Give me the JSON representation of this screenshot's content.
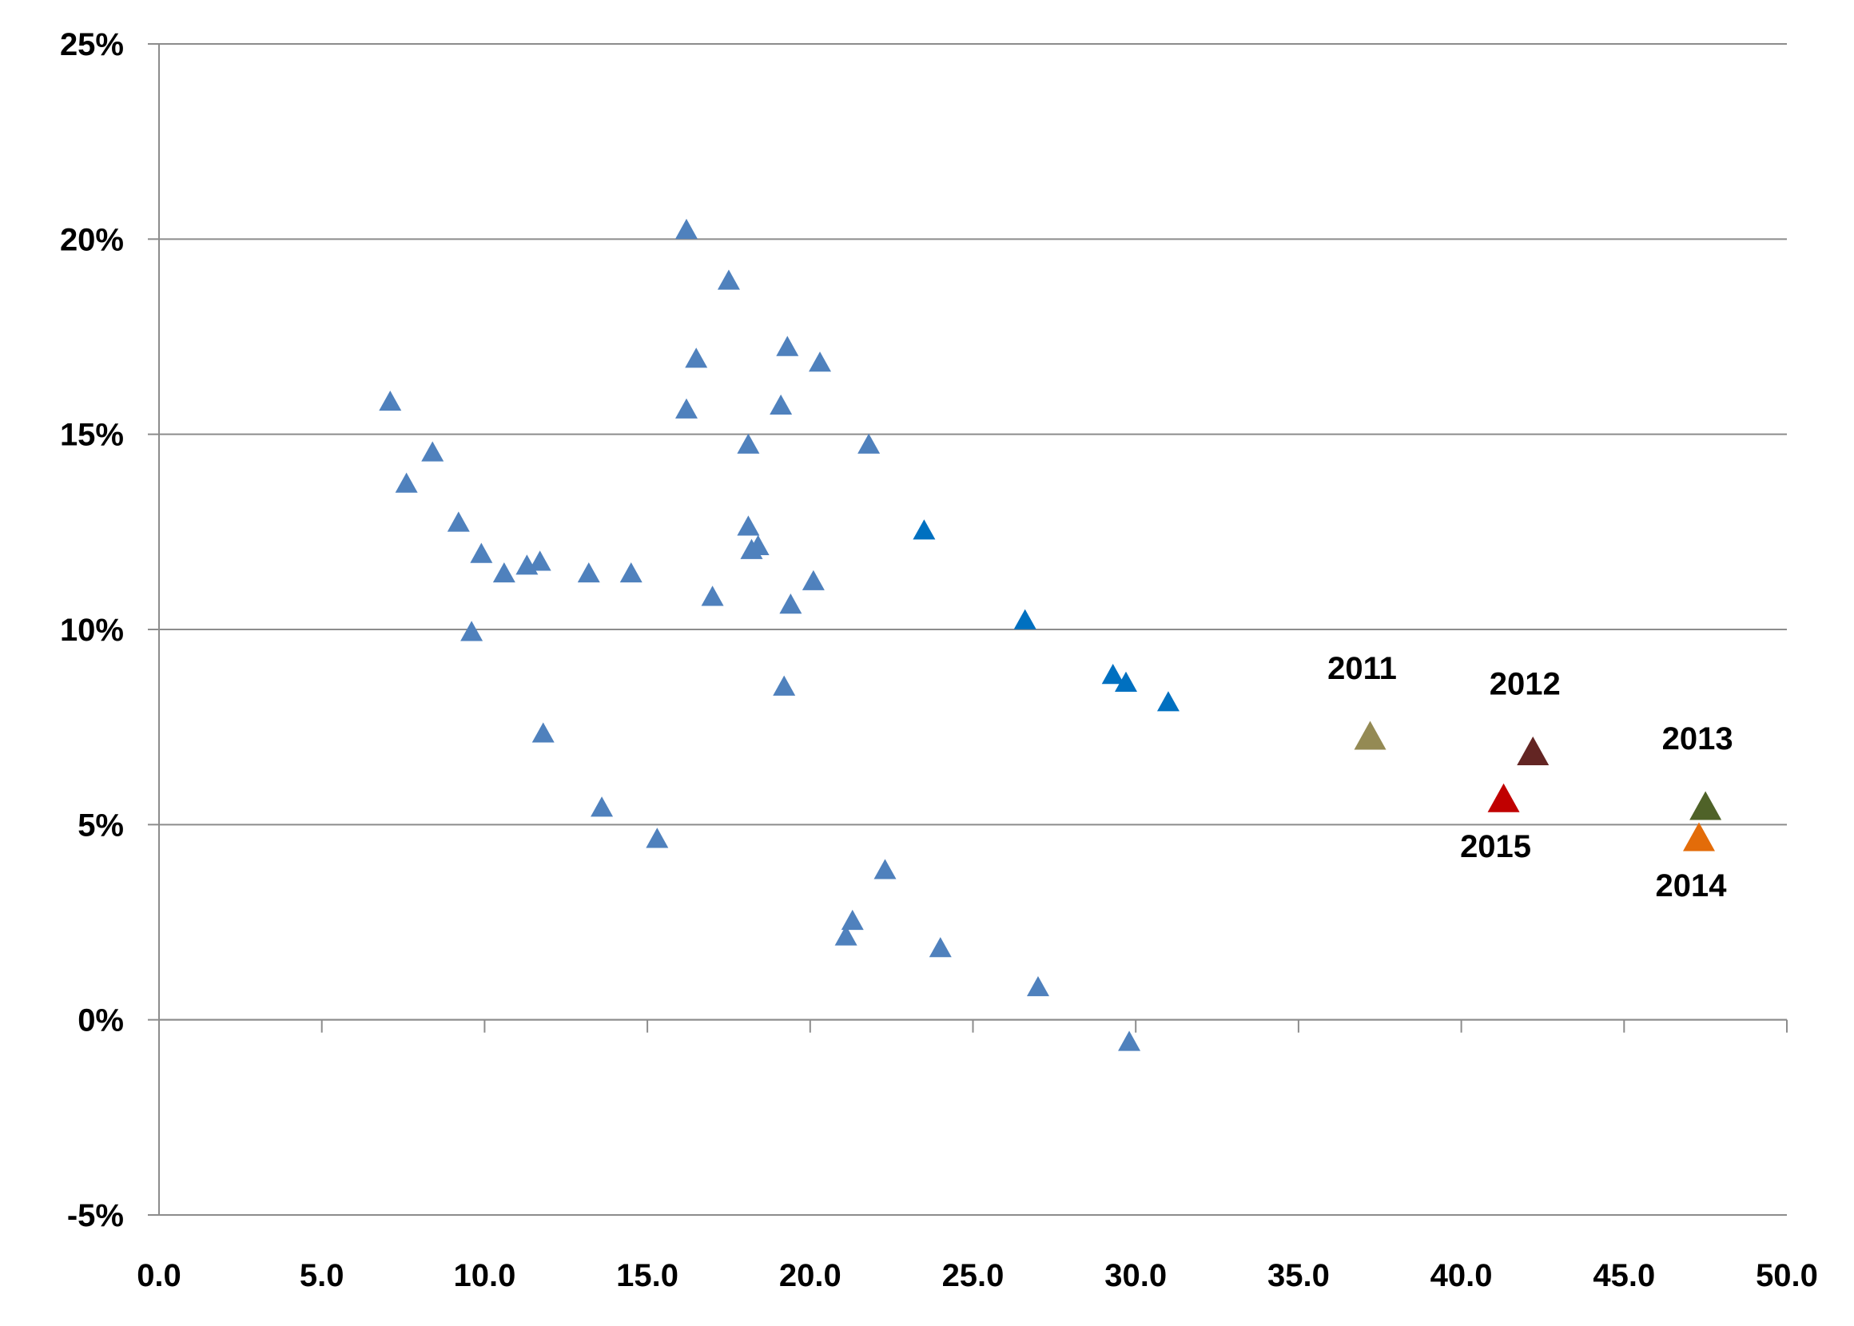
{
  "chart_data": {
    "type": "scatter",
    "title": "",
    "xlabel": "",
    "ylabel": "",
    "xlim": [
      0,
      50
    ],
    "ylim": [
      -5,
      25
    ],
    "x_ticks": [
      0,
      5,
      10,
      15,
      20,
      25,
      30,
      35,
      40,
      45,
      50
    ],
    "y_ticks": [
      -5,
      0,
      5,
      10,
      15,
      20,
      25
    ],
    "x_tick_labels": [
      "0.0",
      "5.0",
      "10.0",
      "15.0",
      "20.0",
      "25.0",
      "30.0",
      "35.0",
      "40.0",
      "45.0",
      "50.0"
    ],
    "y_tick_labels": [
      "-5%",
      "0%",
      "5%",
      "10%",
      "15%",
      "20%",
      "25%"
    ],
    "grid": "horizontal",
    "legend": "none",
    "marker": "triangle",
    "series": [
      {
        "color": "#4f81bd",
        "points": [
          {
            "x": 7.1,
            "y": 15.8
          },
          {
            "x": 7.6,
            "y": 13.7
          },
          {
            "x": 8.4,
            "y": 14.5
          },
          {
            "x": 9.2,
            "y": 12.7
          },
          {
            "x": 9.6,
            "y": 9.9
          },
          {
            "x": 9.9,
            "y": 11.9
          },
          {
            "x": 10.6,
            "y": 11.4
          },
          {
            "x": 11.3,
            "y": 11.6
          },
          {
            "x": 11.7,
            "y": 11.7
          },
          {
            "x": 11.8,
            "y": 7.3
          },
          {
            "x": 13.2,
            "y": 11.4
          },
          {
            "x": 13.6,
            "y": 5.4
          },
          {
            "x": 14.5,
            "y": 11.4
          },
          {
            "x": 15.3,
            "y": 4.6
          },
          {
            "x": 16.2,
            "y": 20.2
          },
          {
            "x": 16.2,
            "y": 15.6
          },
          {
            "x": 16.5,
            "y": 16.9
          },
          {
            "x": 17.0,
            "y": 10.8
          },
          {
            "x": 17.5,
            "y": 18.9
          },
          {
            "x": 18.1,
            "y": 14.7
          },
          {
            "x": 18.1,
            "y": 12.6
          },
          {
            "x": 18.2,
            "y": 12.0
          },
          {
            "x": 18.4,
            "y": 12.1
          },
          {
            "x": 19.1,
            "y": 15.7
          },
          {
            "x": 19.2,
            "y": 8.5
          },
          {
            "x": 19.3,
            "y": 17.2
          },
          {
            "x": 19.4,
            "y": 10.6
          },
          {
            "x": 20.1,
            "y": 11.2
          },
          {
            "x": 20.3,
            "y": 16.8
          },
          {
            "x": 21.1,
            "y": 2.1
          },
          {
            "x": 21.3,
            "y": 2.5
          },
          {
            "x": 21.8,
            "y": 14.7
          },
          {
            "x": 22.3,
            "y": 3.8
          },
          {
            "x": 24.0,
            "y": 1.8
          },
          {
            "x": 27.0,
            "y": 0.8
          },
          {
            "x": 29.8,
            "y": -0.6
          }
        ]
      },
      {
        "color": "#0070c0",
        "points": [
          {
            "x": 23.5,
            "y": 12.5
          },
          {
            "x": 26.6,
            "y": 10.2
          },
          {
            "x": 29.3,
            "y": 8.8
          },
          {
            "x": 29.7,
            "y": 8.6
          },
          {
            "x": 31.0,
            "y": 8.1
          }
        ]
      },
      {
        "name": "2011",
        "color": "#948a54",
        "large": true,
        "label_pos": "above",
        "points": [
          {
            "x": 37.2,
            "y": 7.2
          }
        ]
      },
      {
        "name": "2012",
        "color": "#632523",
        "large": true,
        "label_pos": "above",
        "points": [
          {
            "x": 42.2,
            "y": 6.8
          }
        ]
      },
      {
        "name": "2013",
        "color": "#4f6228",
        "large": true,
        "label_pos": "above",
        "points": [
          {
            "x": 47.5,
            "y": 5.4
          }
        ]
      },
      {
        "name": "2014",
        "color": "#e36c09",
        "large": true,
        "label_pos": "below",
        "points": [
          {
            "x": 47.3,
            "y": 4.6
          }
        ]
      },
      {
        "name": "2015",
        "color": "#c00000",
        "large": true,
        "label_pos": "below",
        "points": [
          {
            "x": 41.3,
            "y": 5.6
          }
        ]
      }
    ]
  }
}
